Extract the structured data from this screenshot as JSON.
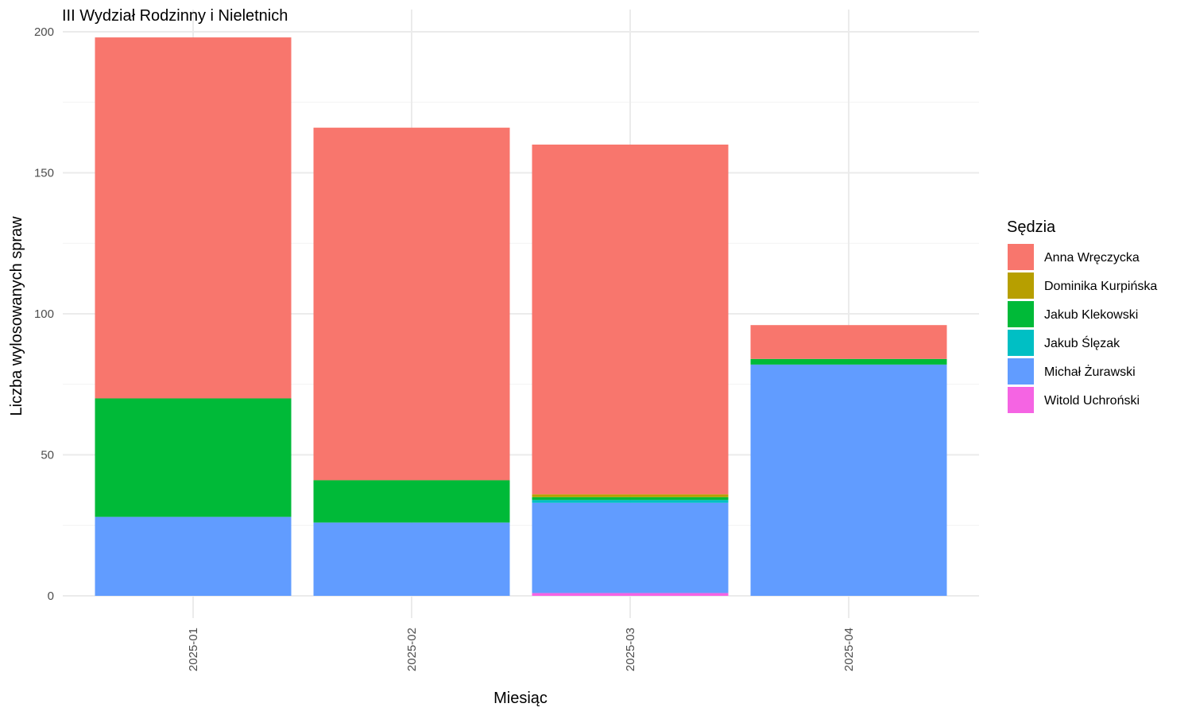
{
  "chart_data": {
    "type": "bar",
    "stacked": true,
    "title": "III Wydział Rodzinny i Nieletnich",
    "xlabel": "Miesiąc",
    "ylabel": "Liczba wylosowanych spraw",
    "categories": [
      "2025-01",
      "2025-02",
      "2025-03",
      "2025-04"
    ],
    "ylim": [
      0,
      200
    ],
    "yticks": [
      0,
      50,
      100,
      150,
      200
    ],
    "grid": true,
    "legend": {
      "title": "Sędzia",
      "position": "right"
    },
    "series": [
      {
        "name": "Anna Wręczycka",
        "color": "#F8766D",
        "values": [
          128,
          125,
          124,
          12
        ]
      },
      {
        "name": "Dominika Kurpińska",
        "color": "#B79F00",
        "values": [
          0,
          0,
          1,
          0
        ]
      },
      {
        "name": "Jakub Klekowski",
        "color": "#00BA38",
        "values": [
          42,
          15,
          1,
          2
        ]
      },
      {
        "name": "Jakub Ślęzak",
        "color": "#00BFC4",
        "values": [
          0,
          0,
          1,
          0
        ]
      },
      {
        "name": "Michał Żurawski",
        "color": "#619CFF",
        "values": [
          28,
          26,
          32,
          82
        ]
      },
      {
        "name": "Witold Uchroński",
        "color": "#F564E3",
        "values": [
          0,
          0,
          1,
          0
        ]
      }
    ]
  }
}
